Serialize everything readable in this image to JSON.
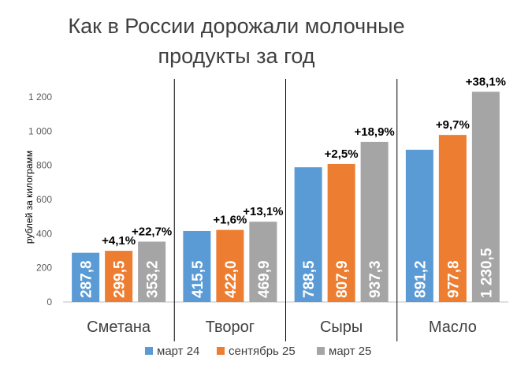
{
  "chart_data": {
    "type": "bar",
    "title_lines": [
      "Как в России дорожали молочные",
      "продукты за год"
    ],
    "ylabel": "рублей за килограмм",
    "ylim": [
      0,
      1200
    ],
    "yticks": [
      "0",
      "200",
      "400",
      "600",
      "800",
      "1 000",
      "1 200"
    ],
    "categories": [
      "Сметана",
      "Творог",
      "Сыры",
      "Масло"
    ],
    "series": [
      {
        "name": "март 24",
        "color": "#5b9bd5",
        "values": [
          287.8,
          415.5,
          788.5,
          891.2
        ],
        "labels": [
          "287,8",
          "415,5",
          "788,5",
          "891,2"
        ]
      },
      {
        "name": "сентябрь 25",
        "color": "#ed7d31",
        "values": [
          299.5,
          422.0,
          807.9,
          977.8
        ],
        "labels": [
          "299,5",
          "422,0",
          "807,9",
          "977,8"
        ],
        "pct_labels": [
          "+4,1%",
          "+1,6%",
          "+2,5%",
          "+9,7%"
        ]
      },
      {
        "name": "март 25",
        "color": "#a5a5a5",
        "values": [
          353.2,
          469.9,
          937.3,
          1230.5
        ],
        "labels": [
          "353,2",
          "469,9",
          "937,3",
          "1 230,5"
        ],
        "pct_labels": [
          "+22,7%",
          "+13,1%",
          "+18,9%",
          "+38,1%"
        ]
      }
    ],
    "legend_position": "bottom",
    "grid": false,
    "category_separators": true
  }
}
